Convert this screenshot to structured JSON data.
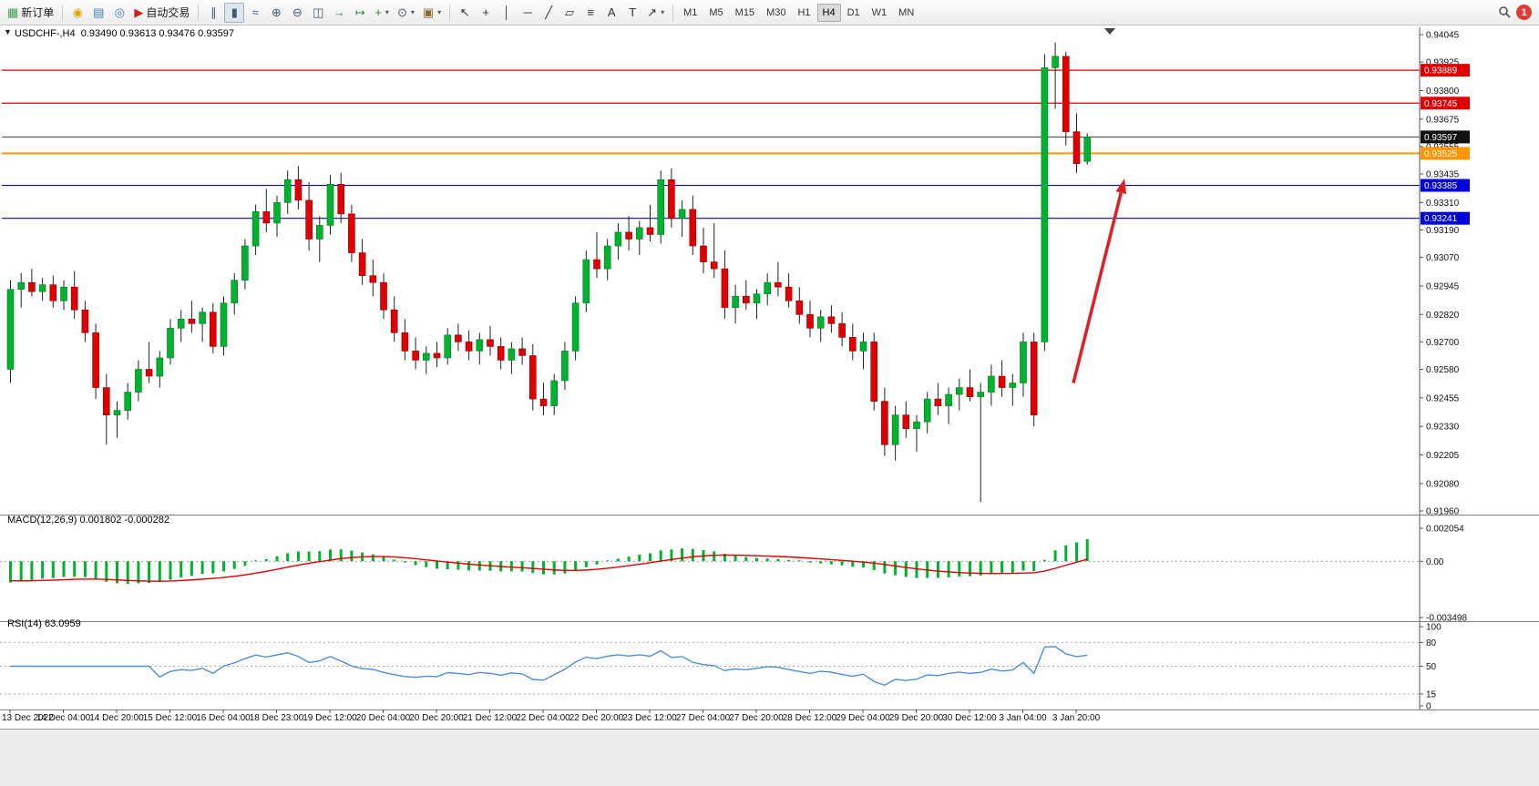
{
  "toolbar": {
    "left_buttons": [
      {
        "name": "new-order-button",
        "icon": "order-form-icon",
        "glyph": "▦",
        "color": "#3fa34d",
        "label": "新订单"
      },
      {
        "name": "alerts-button",
        "icon": "bell-icon",
        "glyph": "◉",
        "color": "#d9a400"
      },
      {
        "name": "market-watch-button",
        "icon": "market-watch-icon",
        "glyph": "▤",
        "color": "#3a7abf"
      },
      {
        "name": "community-button",
        "icon": "globe-icon",
        "glyph": "◎",
        "color": "#3a7abf"
      },
      {
        "name": "autotrading-button",
        "icon": "play-icon",
        "glyph": "▶",
        "color": "#cc2222",
        "label": "自动交易"
      }
    ],
    "chart_buttons": [
      {
        "name": "bar-chart-button",
        "icon": "bar-chart-icon",
        "glyph": "∥",
        "color": "#3d5a73"
      },
      {
        "name": "candlestick-chart-button",
        "icon": "candlestick-icon",
        "glyph": "▮",
        "color": "#3d5a73",
        "active": true
      },
      {
        "name": "line-chart-button",
        "icon": "line-chart-icon",
        "glyph": "≈",
        "color": "#3d5a73"
      },
      {
        "name": "zoom-in-button",
        "icon": "zoom-in-icon",
        "glyph": "⊕",
        "color": "#3d5a73"
      },
      {
        "name": "zoom-out-button",
        "icon": "zoom-out-icon",
        "glyph": "⊖",
        "color": "#3d5a73"
      },
      {
        "name": "tile-windows-button",
        "icon": "tile-windows-icon",
        "glyph": "◫",
        "color": "#3d5a73"
      },
      {
        "name": "auto-scroll-button",
        "icon": "auto-scroll-icon",
        "glyph": "→",
        "color": "#2c8a3f"
      },
      {
        "name": "chart-shift-button",
        "icon": "chart-shift-icon",
        "glyph": "↦",
        "color": "#2c8a3f"
      },
      {
        "name": "indicators-button",
        "icon": "plus-chart-icon",
        "glyph": "+",
        "color": "#2c8a3f",
        "caret": true
      },
      {
        "name": "periods-button",
        "icon": "clock-icon",
        "glyph": "⊙",
        "color": "#3d5a73",
        "caret": true
      },
      {
        "name": "templates-button",
        "icon": "template-icon",
        "glyph": "▣",
        "color": "#8a6a2c",
        "caret": true
      }
    ],
    "draw_buttons": [
      {
        "name": "cursor-button",
        "icon": "cursor-icon",
        "glyph": "↖",
        "color": "#333333"
      },
      {
        "name": "crosshair-button",
        "icon": "crosshair-icon",
        "glyph": "+",
        "color": "#333333"
      },
      {
        "name": "vertical-line-button",
        "icon": "vertical-line-icon",
        "glyph": "│",
        "color": "#333333"
      },
      {
        "name": "horizontal-line-button",
        "icon": "horizontal-line-icon",
        "glyph": "─",
        "color": "#333333"
      },
      {
        "name": "trendline-button",
        "icon": "trendline-icon",
        "glyph": "╱",
        "color": "#333333"
      },
      {
        "name": "channel-button",
        "icon": "channel-icon",
        "glyph": "▱",
        "color": "#333333"
      },
      {
        "name": "fibonacci-button",
        "icon": "fibonacci-icon",
        "glyph": "≡",
        "color": "#333333"
      },
      {
        "name": "text-button",
        "icon": "text-icon",
        "glyph": "A",
        "color": "#333333"
      },
      {
        "name": "label-button",
        "icon": "label-icon",
        "glyph": "T",
        "color": "#333333"
      },
      {
        "name": "arrows-button",
        "icon": "arrow-icon",
        "glyph": "↗",
        "color": "#333333",
        "caret": true
      }
    ],
    "timeframes": [
      "M1",
      "M5",
      "M15",
      "M30",
      "H1",
      "H4",
      "D1",
      "W1",
      "MN"
    ],
    "active_timeframe": "H4",
    "notification_count": "1"
  },
  "chart_data": {
    "type": "candlestick",
    "symbol": "USDCHF-",
    "timeframe": "H4",
    "title_line": "USDCHF-,H4  0.93490 0.93613 0.93476 0.93597",
    "ohlc": {
      "open": "0.93490",
      "high": "0.93613",
      "low": "0.93476",
      "close": "0.93597"
    },
    "one_click_glyph": "▼",
    "up_color": "#00b22d",
    "down_color": "#e00000",
    "price_axis_ticks": [
      "0.94045",
      "0.93925",
      "0.93800",
      "0.93675",
      "0.93555",
      "0.93435",
      "0.93310",
      "0.93190",
      "0.93070",
      "0.92945",
      "0.92820",
      "0.92700",
      "0.92580",
      "0.92455",
      "0.92330",
      "0.92205",
      "0.92080",
      "0.91960"
    ],
    "time_labels": [
      "13 Dec 2022",
      "14 Dec 04:00",
      "14 Dec 20:00",
      "15 Dec 12:00",
      "16 Dec 04:00",
      "18 Dec 23:00",
      "19 Dec 12:00",
      "20 Dec 04:00",
      "20 Dec 20:00",
      "21 Dec 12:00",
      "22 Dec 04:00",
      "22 Dec 20:00",
      "23 Dec 12:00",
      "27 Dec 04:00",
      "27 Dec 20:00",
      "28 Dec 12:00",
      "29 Dec 04:00",
      "29 Dec 20:00",
      "30 Dec 12:00",
      "3 Jan 04:00",
      "3 Jan 20:00"
    ],
    "hlines": [
      {
        "name": "resistance-line-1",
        "price": 0.93889,
        "color": "#e00000"
      },
      {
        "name": "resistance-line-2",
        "price": 0.93745,
        "color": "#e00000"
      },
      {
        "name": "current-price-line",
        "price": 0.93597,
        "color": "#3c3c3c",
        "tag_bg": "#111111",
        "width": 1
      },
      {
        "name": "pivot-line",
        "price": 0.93525,
        "color": "#ff9500",
        "width": 2
      },
      {
        "name": "support-line-1",
        "price": 0.93385,
        "color": "#0000dd"
      },
      {
        "name": "support-line-2",
        "price": 0.93241,
        "color": "#0000dd"
      }
    ],
    "arrow": {
      "from": {
        "bar": 100,
        "price": 0.9252
      },
      "to": {
        "bar": 104.8,
        "price": 0.93415
      },
      "color": "#e02020"
    },
    "candles": [
      [
        0.9258,
        0.9297,
        0.9252,
        0.9293
      ],
      [
        0.9293,
        0.93,
        0.9285,
        0.9296
      ],
      [
        0.9296,
        0.9302,
        0.929,
        0.9292
      ],
      [
        0.9292,
        0.9298,
        0.9288,
        0.9295
      ],
      [
        0.9295,
        0.9299,
        0.9285,
        0.9288
      ],
      [
        0.9288,
        0.9297,
        0.9284,
        0.9294
      ],
      [
        0.9294,
        0.9301,
        0.928,
        0.9284
      ],
      [
        0.9284,
        0.9288,
        0.927,
        0.9274
      ],
      [
        0.9274,
        0.9278,
        0.9245,
        0.925
      ],
      [
        0.925,
        0.9256,
        0.9225,
        0.9238
      ],
      [
        0.9238,
        0.9244,
        0.9228,
        0.924
      ],
      [
        0.924,
        0.9252,
        0.9236,
        0.9248
      ],
      [
        0.9248,
        0.9262,
        0.9244,
        0.9258
      ],
      [
        0.9258,
        0.927,
        0.9252,
        0.9255
      ],
      [
        0.9255,
        0.9266,
        0.925,
        0.9263
      ],
      [
        0.9263,
        0.928,
        0.926,
        0.9276
      ],
      [
        0.9276,
        0.9284,
        0.927,
        0.928
      ],
      [
        0.928,
        0.9288,
        0.9274,
        0.9278
      ],
      [
        0.9278,
        0.9285,
        0.927,
        0.9283
      ],
      [
        0.9283,
        0.9287,
        0.9265,
        0.9268
      ],
      [
        0.9268,
        0.929,
        0.9264,
        0.9287
      ],
      [
        0.9287,
        0.93,
        0.9282,
        0.9297
      ],
      [
        0.9297,
        0.9315,
        0.9293,
        0.9312
      ],
      [
        0.9312,
        0.933,
        0.9308,
        0.9327
      ],
      [
        0.9327,
        0.9337,
        0.9318,
        0.9322
      ],
      [
        0.9322,
        0.9334,
        0.9316,
        0.9331
      ],
      [
        0.9331,
        0.9345,
        0.9326,
        0.9341
      ],
      [
        0.9341,
        0.9347,
        0.9328,
        0.9332
      ],
      [
        0.9332,
        0.934,
        0.931,
        0.9315
      ],
      [
        0.9315,
        0.9325,
        0.9305,
        0.9321
      ],
      [
        0.9321,
        0.9343,
        0.9317,
        0.9339
      ],
      [
        0.9339,
        0.9344,
        0.9322,
        0.9326
      ],
      [
        0.9326,
        0.933,
        0.9305,
        0.9309
      ],
      [
        0.9309,
        0.9315,
        0.9295,
        0.9299
      ],
      [
        0.9299,
        0.9306,
        0.929,
        0.9296
      ],
      [
        0.9296,
        0.93,
        0.928,
        0.9284
      ],
      [
        0.9284,
        0.929,
        0.927,
        0.9274
      ],
      [
        0.9274,
        0.928,
        0.9262,
        0.9266
      ],
      [
        0.9266,
        0.9272,
        0.9258,
        0.9262
      ],
      [
        0.9262,
        0.9268,
        0.9256,
        0.9265
      ],
      [
        0.9265,
        0.927,
        0.9259,
        0.9263
      ],
      [
        0.9263,
        0.9276,
        0.926,
        0.9273
      ],
      [
        0.9273,
        0.9278,
        0.9266,
        0.927
      ],
      [
        0.927,
        0.9275,
        0.9262,
        0.9266
      ],
      [
        0.9266,
        0.9274,
        0.926,
        0.9271
      ],
      [
        0.9271,
        0.9277,
        0.9264,
        0.9268
      ],
      [
        0.9268,
        0.9272,
        0.9258,
        0.9262
      ],
      [
        0.9262,
        0.927,
        0.9256,
        0.9267
      ],
      [
        0.9267,
        0.9272,
        0.926,
        0.9264
      ],
      [
        0.9264,
        0.9269,
        0.924,
        0.9245
      ],
      [
        0.9245,
        0.9252,
        0.9238,
        0.9242
      ],
      [
        0.9242,
        0.9256,
        0.9238,
        0.9253
      ],
      [
        0.9253,
        0.927,
        0.9249,
        0.9266
      ],
      [
        0.9266,
        0.929,
        0.9262,
        0.9287
      ],
      [
        0.9287,
        0.931,
        0.9283,
        0.9306
      ],
      [
        0.9306,
        0.9318,
        0.9298,
        0.9302
      ],
      [
        0.9302,
        0.9315,
        0.9297,
        0.9312
      ],
      [
        0.9312,
        0.9322,
        0.9306,
        0.9318
      ],
      [
        0.9318,
        0.9325,
        0.931,
        0.9315
      ],
      [
        0.9315,
        0.9323,
        0.9308,
        0.932
      ],
      [
        0.932,
        0.933,
        0.9314,
        0.9317
      ],
      [
        0.9317,
        0.9345,
        0.9313,
        0.9341
      ],
      [
        0.9341,
        0.9346,
        0.932,
        0.9324
      ],
      [
        0.9324,
        0.9332,
        0.9316,
        0.9328
      ],
      [
        0.9328,
        0.9334,
        0.9308,
        0.9312
      ],
      [
        0.9312,
        0.932,
        0.93,
        0.9305
      ],
      [
        0.9305,
        0.9322,
        0.9298,
        0.9302
      ],
      [
        0.9302,
        0.931,
        0.928,
        0.9285
      ],
      [
        0.9285,
        0.9295,
        0.9278,
        0.929
      ],
      [
        0.929,
        0.9297,
        0.9284,
        0.9287
      ],
      [
        0.9287,
        0.9293,
        0.928,
        0.9291
      ],
      [
        0.9291,
        0.93,
        0.9286,
        0.9296
      ],
      [
        0.9296,
        0.9305,
        0.929,
        0.9294
      ],
      [
        0.9294,
        0.93,
        0.9285,
        0.9288
      ],
      [
        0.9288,
        0.9294,
        0.9278,
        0.9282
      ],
      [
        0.9282,
        0.9288,
        0.9272,
        0.9276
      ],
      [
        0.9276,
        0.9284,
        0.927,
        0.9281
      ],
      [
        0.9281,
        0.9286,
        0.9274,
        0.9278
      ],
      [
        0.9278,
        0.9283,
        0.9268,
        0.9272
      ],
      [
        0.9272,
        0.9278,
        0.9262,
        0.9266
      ],
      [
        0.9266,
        0.9274,
        0.9258,
        0.927
      ],
      [
        0.927,
        0.9274,
        0.924,
        0.9244
      ],
      [
        0.9244,
        0.925,
        0.922,
        0.9225
      ],
      [
        0.9225,
        0.9242,
        0.9218,
        0.9238
      ],
      [
        0.9238,
        0.9244,
        0.9228,
        0.9232
      ],
      [
        0.9232,
        0.9238,
        0.9222,
        0.9235
      ],
      [
        0.9235,
        0.9248,
        0.923,
        0.9245
      ],
      [
        0.9245,
        0.9252,
        0.9238,
        0.9242
      ],
      [
        0.9242,
        0.925,
        0.9234,
        0.9247
      ],
      [
        0.9247,
        0.9254,
        0.924,
        0.925
      ],
      [
        0.925,
        0.9258,
        0.9244,
        0.9246
      ],
      [
        0.9246,
        0.9252,
        0.92,
        0.9248
      ],
      [
        0.9248,
        0.926,
        0.9242,
        0.9255
      ],
      [
        0.9255,
        0.9262,
        0.9246,
        0.925
      ],
      [
        0.925,
        0.9256,
        0.9242,
        0.9252
      ],
      [
        0.9252,
        0.9274,
        0.9246,
        0.927
      ],
      [
        0.927,
        0.9274,
        0.9233,
        0.9238
      ],
      [
        0.927,
        0.9396,
        0.9266,
        0.939
      ],
      [
        0.939,
        0.9401,
        0.9372,
        0.9395
      ],
      [
        0.9395,
        0.9397,
        0.9356,
        0.9362
      ],
      [
        0.9362,
        0.937,
        0.9344,
        0.9348
      ],
      [
        0.9349,
        0.93613,
        0.93476,
        0.93597
      ]
    ],
    "macd": {
      "title_line": "MACD(12,26,9) 0.001802 -0.000282",
      "params": [
        12,
        26,
        9
      ],
      "main_value": "0.001802",
      "signal_value": "-0.000282",
      "axis_ticks": [
        "0.002054",
        "0.00",
        "-0.003498"
      ],
      "histogram_color": "#00b22d",
      "signal_color": "#e00000"
    },
    "rsi": {
      "title_line": "RSI(14) 63.0959",
      "period": 14,
      "value": "63.0959",
      "axis_ticks": [
        "100",
        "80",
        "50",
        "15",
        "0"
      ],
      "levels": [
        80,
        50,
        15
      ],
      "line_color": "#4a90d9"
    }
  }
}
